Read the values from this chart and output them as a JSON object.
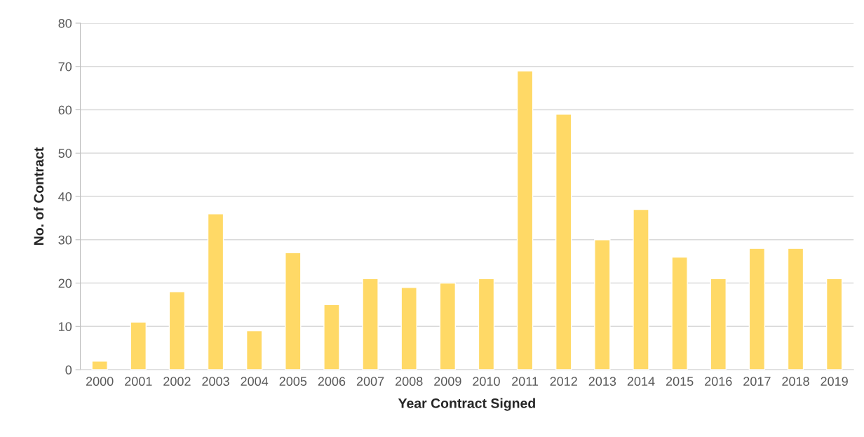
{
  "chart_data": {
    "type": "bar",
    "xlabel": "Year Contract Signed",
    "ylabel": "No. of Contract",
    "categories": [
      "2000",
      "2001",
      "2002",
      "2003",
      "2004",
      "2005",
      "2006",
      "2007",
      "2008",
      "2009",
      "2010",
      "2011",
      "2012",
      "2013",
      "2014",
      "2015",
      "2016",
      "2017",
      "2018",
      "2019"
    ],
    "values": [
      2,
      11,
      18,
      36,
      9,
      27,
      15,
      21,
      19,
      20,
      21,
      69,
      59,
      30,
      37,
      26,
      21,
      28,
      28,
      21
    ],
    "color": "#ffd966",
    "ylim": [
      0,
      80
    ],
    "yticks": [
      0,
      10,
      20,
      30,
      40,
      50,
      60,
      70,
      80
    ],
    "grid": "y",
    "legend": false
  }
}
